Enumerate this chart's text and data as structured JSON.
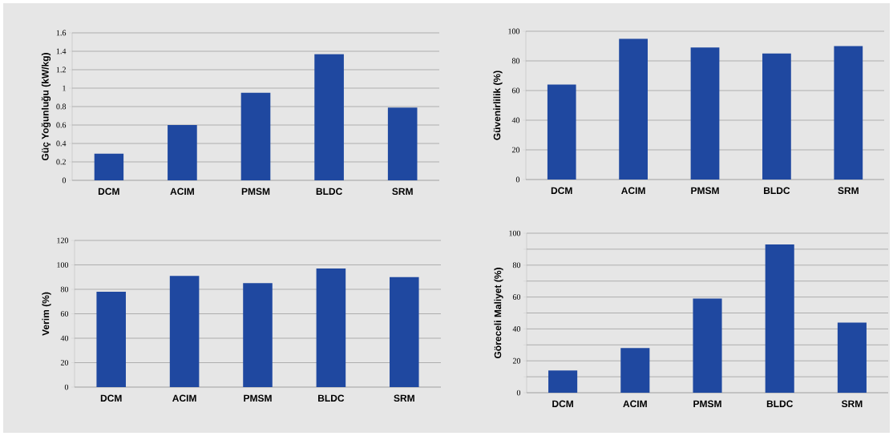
{
  "chart_data": [
    {
      "type": "bar",
      "ylabel": "Güç Yoğunluğu (kW/kg)",
      "categories": [
        "DCM",
        "ACIM",
        "PMSM",
        "BLDC",
        "SRM"
      ],
      "values": [
        0.29,
        0.6,
        0.95,
        1.37,
        0.79
      ],
      "color": "#1f48a0",
      "ylim": [
        0,
        1.6
      ],
      "yticks": [
        0,
        0.2,
        0.4,
        0.6,
        0.8,
        1,
        1.2,
        1.4,
        1.6
      ],
      "grid": "y"
    },
    {
      "type": "bar",
      "ylabel": "Güvenirlilik (%)",
      "categories": [
        "DCM",
        "ACIM",
        "PMSM",
        "BLDC",
        "SRM"
      ],
      "values": [
        64,
        95,
        89,
        85,
        90
      ],
      "color": "#1f48a0",
      "ylim": [
        0,
        100
      ],
      "yticks": [
        0,
        20,
        40,
        60,
        80,
        100
      ],
      "grid": "y"
    },
    {
      "type": "bar",
      "ylabel": "Verim (%)",
      "categories": [
        "DCM",
        "ACIM",
        "PMSM",
        "BLDC",
        "SRM"
      ],
      "values": [
        78,
        91,
        85,
        97,
        90
      ],
      "color": "#1f48a0",
      "ylim": [
        0,
        120
      ],
      "yticks": [
        0,
        20,
        40,
        60,
        80,
        100,
        120
      ],
      "grid": "y"
    },
    {
      "type": "bar",
      "ylabel": "Göreceli Maliyet (%)",
      "categories": [
        "DCM",
        "ACIM",
        "PMSM",
        "BLDC",
        "SRM"
      ],
      "values": [
        14,
        28,
        59,
        93,
        44
      ],
      "color": "#1f48a0",
      "ylim": [
        0,
        100
      ],
      "yticks": [
        0,
        {
          "value": 10,
          "label": null
        },
        20,
        {
          "value": 30,
          "label": null
        },
        40,
        {
          "value": 50,
          "label": null
        },
        60,
        {
          "value": 70,
          "label": null
        },
        80,
        {
          "value": 90,
          "label": null
        },
        100
      ],
      "grid": "y"
    }
  ]
}
